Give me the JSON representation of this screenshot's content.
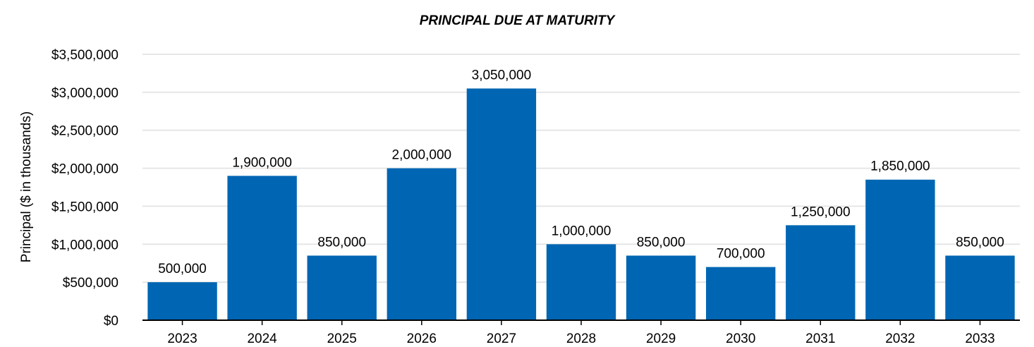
{
  "chart_data": {
    "type": "bar",
    "title": "PRINCIPAL DUE AT MATURITY",
    "xlabel": "",
    "ylabel": "Principal ($ in thousands)",
    "categories": [
      "2023",
      "2024",
      "2025",
      "2026",
      "2027",
      "2028",
      "2029",
      "2030",
      "2031",
      "2032",
      "2033"
    ],
    "values": [
      500000,
      1900000,
      850000,
      2000000,
      3050000,
      1000000,
      850000,
      700000,
      1250000,
      1850000,
      850000
    ],
    "value_labels": [
      "500,000",
      "1,900,000",
      "850,000",
      "2,000,000",
      "3,050,000",
      "1,000,000",
      "850,000",
      "700,000",
      "1,250,000",
      "1,850,000",
      "850,000"
    ],
    "y_ticks": [
      0,
      500000,
      1000000,
      1500000,
      2000000,
      2500000,
      3000000,
      3500000
    ],
    "y_tick_labels": [
      "$0",
      "$500,000",
      "$1,000,000",
      "$1,500,000",
      "$2,000,000",
      "$2,500,000",
      "$3,000,000",
      "$3,500,000"
    ],
    "ylim": [
      0,
      3500000
    ],
    "grid": true,
    "legend": "none",
    "bar_color": "#0066b3",
    "grid_color": "#e6e6e6"
  }
}
